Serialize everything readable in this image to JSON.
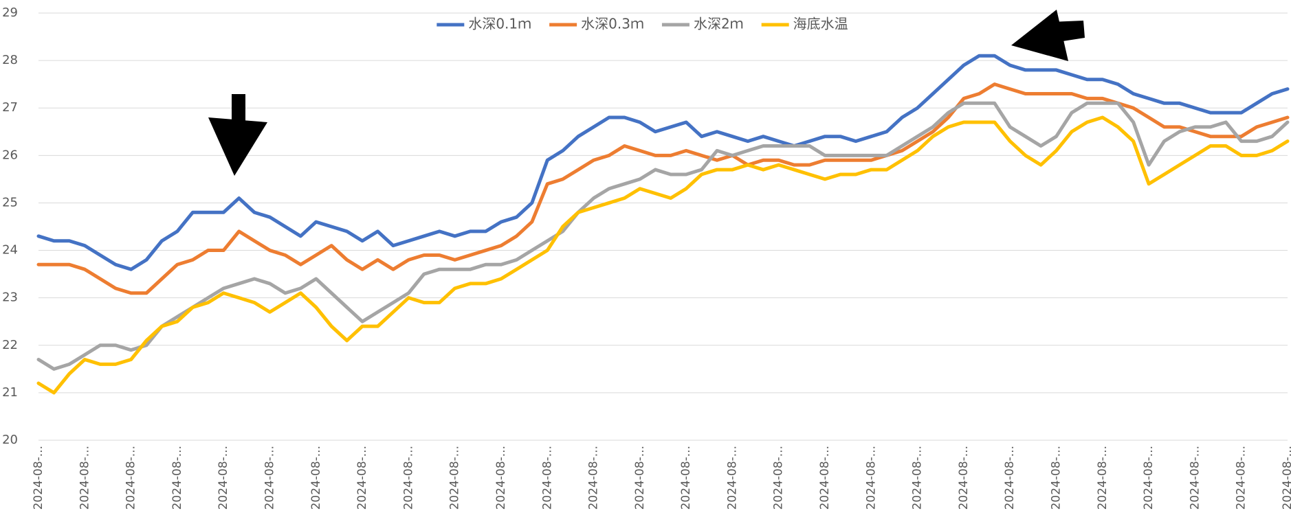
{
  "chart_data": {
    "type": "line",
    "categories": [
      "2024-08-...",
      null,
      null,
      "2024-08-...",
      null,
      null,
      "2024-08-...",
      null,
      null,
      "2024-08-...",
      null,
      null,
      "2024-08-...",
      null,
      null,
      "2024-08-...",
      null,
      null,
      "2024-08-...",
      null,
      null,
      "2024-08-...",
      null,
      null,
      "2024-08-...",
      null,
      null,
      "2024-08-...",
      null,
      null,
      "2024-08-...",
      null,
      null,
      "2024-08-...",
      null,
      null,
      "2024-08-...",
      null,
      null,
      "2024-08-...",
      null,
      null,
      "2024-08-...",
      null,
      null,
      "2024-08-...",
      null,
      null,
      "2024-08-...",
      null,
      null,
      "2024-08-...",
      null,
      null,
      "2024-08-...",
      null,
      null,
      "2024-08-...",
      null,
      null,
      "2024-08-...",
      null,
      null,
      "2024-08-...",
      null,
      null,
      "2024-08-...",
      null,
      null,
      "2024-08-...",
      null,
      null,
      "2024-08-...",
      null,
      null,
      "2024-08-...",
      null,
      null,
      "2024-08-...",
      null,
      null,
      "2024-08-..."
    ],
    "series": [
      {
        "name": "水深0.1ｍ",
        "color": "#4472c4",
        "values": [
          24.3,
          24.2,
          24.2,
          24.1,
          23.9,
          23.7,
          23.6,
          23.8,
          24.2,
          24.4,
          24.8,
          24.8,
          24.8,
          25.1,
          24.8,
          24.7,
          24.5,
          24.3,
          24.6,
          24.5,
          24.4,
          24.2,
          24.4,
          24.1,
          24.2,
          24.3,
          24.4,
          24.3,
          24.4,
          24.4,
          24.6,
          24.7,
          25.0,
          25.9,
          26.1,
          26.4,
          26.6,
          26.8,
          26.8,
          26.7,
          26.5,
          26.6,
          26.7,
          26.4,
          26.5,
          26.4,
          26.3,
          26.4,
          26.3,
          26.2,
          26.3,
          26.4,
          26.4,
          26.3,
          26.4,
          26.5,
          26.8,
          27.0,
          27.3,
          27.6,
          27.9,
          28.1,
          28.1,
          27.9,
          27.8,
          27.8,
          27.8,
          27.7,
          27.6,
          27.6,
          27.5,
          27.3,
          27.2,
          27.1,
          27.1,
          27.0,
          26.9,
          26.9,
          26.9,
          27.1,
          27.3,
          27.4
        ]
      },
      {
        "name": "水深0.3ｍ",
        "color": "#ed7d31",
        "values": [
          23.7,
          23.7,
          23.7,
          23.6,
          23.4,
          23.2,
          23.1,
          23.1,
          23.4,
          23.7,
          23.8,
          24.0,
          24.0,
          24.4,
          24.2,
          24.0,
          23.9,
          23.7,
          23.9,
          24.1,
          23.8,
          23.6,
          23.8,
          23.6,
          23.8,
          23.9,
          23.9,
          23.8,
          23.9,
          24.0,
          24.1,
          24.3,
          24.6,
          25.4,
          25.5,
          25.7,
          25.9,
          26.0,
          26.2,
          26.1,
          26.0,
          26.0,
          26.1,
          26.0,
          25.9,
          26.0,
          25.8,
          25.9,
          25.9,
          25.8,
          25.8,
          25.9,
          25.9,
          25.9,
          25.9,
          26.0,
          26.1,
          26.3,
          26.5,
          26.8,
          27.2,
          27.3,
          27.5,
          27.4,
          27.3,
          27.3,
          27.3,
          27.3,
          27.2,
          27.2,
          27.1,
          27.0,
          26.8,
          26.6,
          26.6,
          26.5,
          26.4,
          26.4,
          26.4,
          26.6,
          26.7,
          26.8
        ]
      },
      {
        "name": "水深2ｍ",
        "color": "#a5a5a5",
        "values": [
          21.7,
          21.5,
          21.6,
          21.8,
          22.0,
          22.0,
          21.9,
          22.0,
          22.4,
          22.6,
          22.8,
          23.0,
          23.2,
          23.3,
          23.4,
          23.3,
          23.1,
          23.2,
          23.4,
          23.1,
          22.8,
          22.5,
          22.7,
          22.9,
          23.1,
          23.5,
          23.6,
          23.6,
          23.6,
          23.7,
          23.7,
          23.8,
          24.0,
          24.2,
          24.4,
          24.8,
          25.1,
          25.3,
          25.4,
          25.5,
          25.7,
          25.6,
          25.6,
          25.7,
          26.1,
          26.0,
          26.1,
          26.2,
          26.2,
          26.2,
          26.2,
          26.0,
          26.0,
          26.0,
          26.0,
          26.0,
          26.2,
          26.4,
          26.6,
          26.9,
          27.1,
          27.1,
          27.1,
          26.6,
          26.4,
          26.2,
          26.4,
          26.9,
          27.1,
          27.1,
          27.1,
          26.7,
          25.8,
          26.3,
          26.5,
          26.6,
          26.6,
          26.7,
          26.3,
          26.3,
          26.4,
          26.7
        ]
      },
      {
        "name": "海底水温",
        "color": "#ffc000",
        "values": [
          21.2,
          21.0,
          21.4,
          21.7,
          21.6,
          21.6,
          21.7,
          22.1,
          22.4,
          22.5,
          22.8,
          22.9,
          23.1,
          23.0,
          22.9,
          22.7,
          22.9,
          23.1,
          22.8,
          22.4,
          22.1,
          22.4,
          22.4,
          22.7,
          23.0,
          22.9,
          22.9,
          23.2,
          23.3,
          23.3,
          23.4,
          23.6,
          23.8,
          24.0,
          24.5,
          24.8,
          24.9,
          25.0,
          25.1,
          25.3,
          25.2,
          25.1,
          25.3,
          25.6,
          25.7,
          25.7,
          25.8,
          25.7,
          25.8,
          25.7,
          25.6,
          25.5,
          25.6,
          25.6,
          25.7,
          25.7,
          25.9,
          26.1,
          26.4,
          26.6,
          26.7,
          26.7,
          26.7,
          26.3,
          26.0,
          25.8,
          26.1,
          26.5,
          26.7,
          26.8,
          26.6,
          26.3,
          25.4,
          25.6,
          25.8,
          26.0,
          26.2,
          26.2,
          26.0,
          26.0,
          26.1,
          26.3
        ]
      }
    ],
    "ylim": [
      20,
      29
    ],
    "yticks": [
      20,
      21,
      22,
      23,
      24,
      25,
      26,
      27,
      28,
      29
    ],
    "grid": true,
    "legend": "top"
  }
}
